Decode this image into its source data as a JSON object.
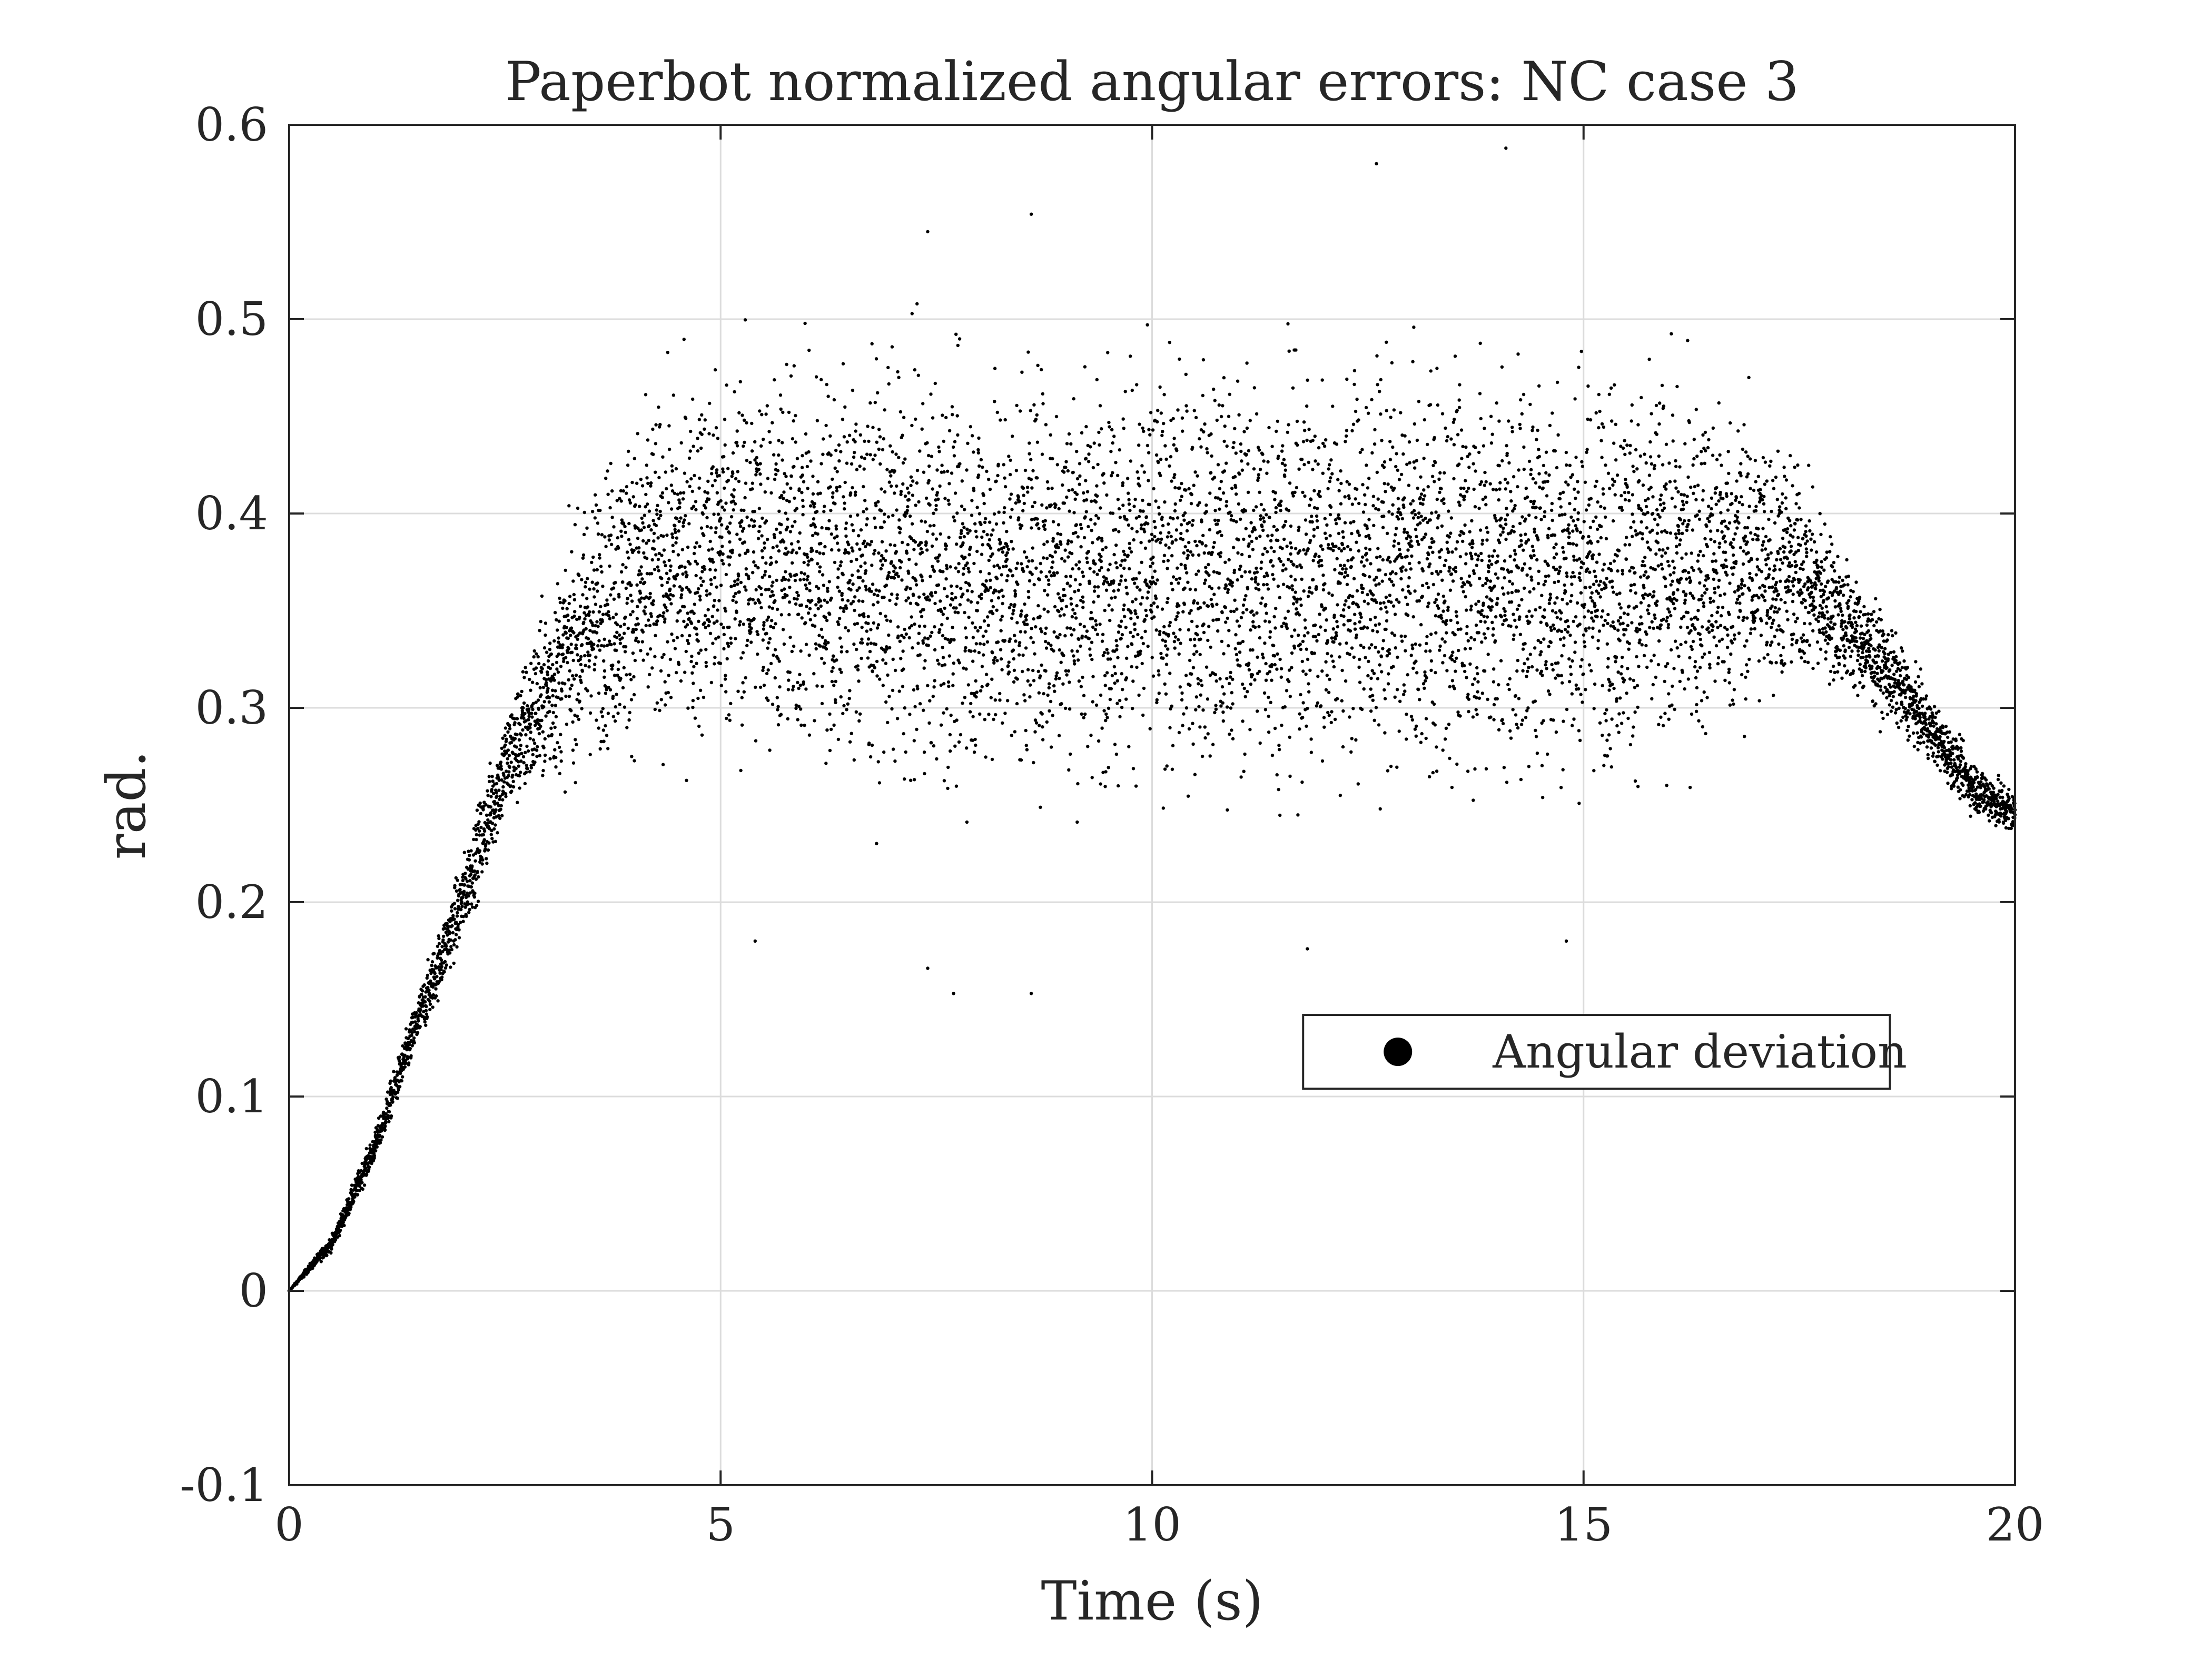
{
  "chart_data": {
    "type": "scatter",
    "title": "Paperbot normalized angular errors: NC case 3",
    "xlabel": "Time (s)",
    "ylabel": "rad.",
    "xlim": [
      0,
      20
    ],
    "ylim": [
      -0.1,
      0.6
    ],
    "xticks": [
      0,
      5,
      10,
      15,
      20
    ],
    "xtick_labels": [
      "0",
      "5",
      "10",
      "15",
      "20"
    ],
    "yticks": [
      -0.1,
      0,
      0.1,
      0.2,
      0.3,
      0.4,
      0.5,
      0.6
    ],
    "ytick_labels": [
      "-0.1",
      "0",
      "0.1",
      "0.2",
      "0.3",
      "0.4",
      "0.5",
      "0.6"
    ],
    "grid": true,
    "legend": {
      "position": "lower-right",
      "entries": [
        "Angular deviation"
      ]
    },
    "series": [
      {
        "name": "Angular deviation",
        "color": "#000000",
        "marker": "dot",
        "envelope": {
          "time": [
            0,
            0.5,
            1.0,
            1.5,
            2.0,
            2.5,
            3.0,
            3.5,
            4.0,
            5.0,
            6.0,
            7.0,
            8.0,
            9.0,
            10.0,
            11.0,
            12.0,
            13.0,
            14.0,
            15.0,
            16.0,
            17.0,
            17.5,
            18.0,
            18.5,
            19.0,
            19.5,
            20.0
          ],
          "center": [
            0.0,
            0.025,
            0.075,
            0.14,
            0.2,
            0.27,
            0.31,
            0.345,
            0.365,
            0.38,
            0.375,
            0.37,
            0.365,
            0.37,
            0.37,
            0.37,
            0.37,
            0.37,
            0.37,
            0.37,
            0.37,
            0.375,
            0.37,
            0.345,
            0.32,
            0.29,
            0.26,
            0.245
          ],
          "spread": [
            0.0,
            0.003,
            0.006,
            0.01,
            0.015,
            0.02,
            0.035,
            0.05,
            0.06,
            0.07,
            0.075,
            0.075,
            0.075,
            0.075,
            0.075,
            0.075,
            0.075,
            0.075,
            0.075,
            0.075,
            0.07,
            0.055,
            0.04,
            0.025,
            0.018,
            0.012,
            0.01,
            0.01
          ]
        },
        "count": 9000,
        "sample_points": [
          [
            0.0,
            0.0
          ],
          [
            0.5,
            0.025
          ],
          [
            1.0,
            0.08
          ],
          [
            2.0,
            0.2
          ],
          [
            3.0,
            0.31
          ],
          [
            5.0,
            0.38
          ],
          [
            7.4,
            0.545
          ],
          [
            8.6,
            0.554
          ],
          [
            12.6,
            0.58
          ],
          [
            14.1,
            0.588
          ],
          [
            8.6,
            0.153
          ],
          [
            7.7,
            0.153
          ],
          [
            7.4,
            0.166
          ],
          [
            5.4,
            0.18
          ],
          [
            11.8,
            0.176
          ],
          [
            14.8,
            0.18
          ],
          [
            20.0,
            0.245
          ]
        ]
      }
    ]
  }
}
